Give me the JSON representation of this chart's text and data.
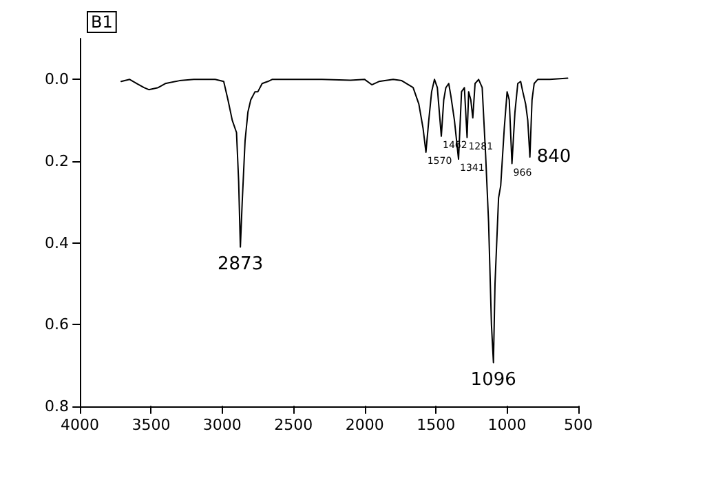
{
  "chart_data": {
    "type": "line",
    "title": "B1",
    "marker": "none",
    "grid": false,
    "xlim": [
      4000,
      500
    ],
    "xticks": [
      4000,
      3500,
      3000,
      2500,
      2000,
      1500,
      1000,
      500
    ],
    "ylim": [
      0.8,
      -0.1
    ],
    "yticks": [
      {
        "value": 0,
        "label": "0.0"
      },
      {
        "value": 0.2,
        "label": "0.2"
      },
      {
        "value": 0.4,
        "label": "0.4"
      },
      {
        "value": 0.6,
        "label": "0.6"
      },
      {
        "value": 0.8,
        "label": "0.8"
      }
    ],
    "series": [
      {
        "color": "#000000",
        "x": [
          3710,
          3650,
          3600,
          3550,
          3516,
          3450,
          3400,
          3300,
          3200,
          3050,
          2990,
          2960,
          2930,
          2900,
          2885,
          2873,
          2860,
          2840,
          2820,
          2800,
          2770,
          2750,
          2720,
          2680,
          2650,
          2500,
          2300,
          2100,
          2000,
          1950,
          1900,
          1800,
          1740,
          1660,
          1620,
          1590,
          1570,
          1550,
          1530,
          1510,
          1490,
          1462,
          1445,
          1430,
          1410,
          1395,
          1370,
          1341,
          1320,
          1300,
          1281,
          1270,
          1255,
          1241,
          1225,
          1200,
          1175,
          1151,
          1130,
          1110,
          1096,
          1085,
          1060,
          1045,
          1020,
          1000,
          985,
          966,
          945,
          925,
          905,
          890,
          870,
          855,
          840,
          825,
          810,
          785,
          700,
          575
        ],
        "values": [
          0.005,
          0.0,
          0.01,
          0.02,
          0.025,
          0.02,
          0.01,
          0.003,
          0.0,
          0.0,
          0.005,
          0.05,
          0.1,
          0.13,
          0.25,
          0.41,
          0.3,
          0.15,
          0.08,
          0.05,
          0.03,
          0.03,
          0.01,
          0.005,
          0.0,
          0.0,
          0.0,
          0.002,
          0.0,
          0.013,
          0.005,
          0.0,
          0.003,
          0.02,
          0.06,
          0.12,
          0.178,
          0.1,
          0.03,
          0.0,
          0.02,
          0.139,
          0.05,
          0.02,
          0.01,
          0.04,
          0.1,
          0.195,
          0.03,
          0.02,
          0.142,
          0.03,
          0.05,
          0.094,
          0.01,
          0.0,
          0.02,
          0.184,
          0.35,
          0.6,
          0.693,
          0.5,
          0.29,
          0.26,
          0.12,
          0.03,
          0.05,
          0.206,
          0.08,
          0.01,
          0.005,
          0.03,
          0.06,
          0.1,
          0.19,
          0.05,
          0.01,
          0.0,
          0.0,
          -0.003
        ]
      }
    ],
    "annotations": [
      {
        "text": "2873",
        "x": 2873,
        "y": 0.41
      },
      {
        "text": "1570",
        "x": 1570,
        "y": 0.178
      },
      {
        "text": "1462",
        "x": 1462,
        "y": 0.139
      },
      {
        "text": "1341",
        "x": 1341,
        "y": 0.195
      },
      {
        "text": "1281",
        "x": 1281,
        "y": 0.142
      },
      {
        "text": "1096",
        "x": 1096,
        "y": 0.693
      },
      {
        "text": "966",
        "x": 966,
        "y": 0.206
      },
      {
        "text": "840",
        "x": 840,
        "y": 0.19
      }
    ]
  }
}
